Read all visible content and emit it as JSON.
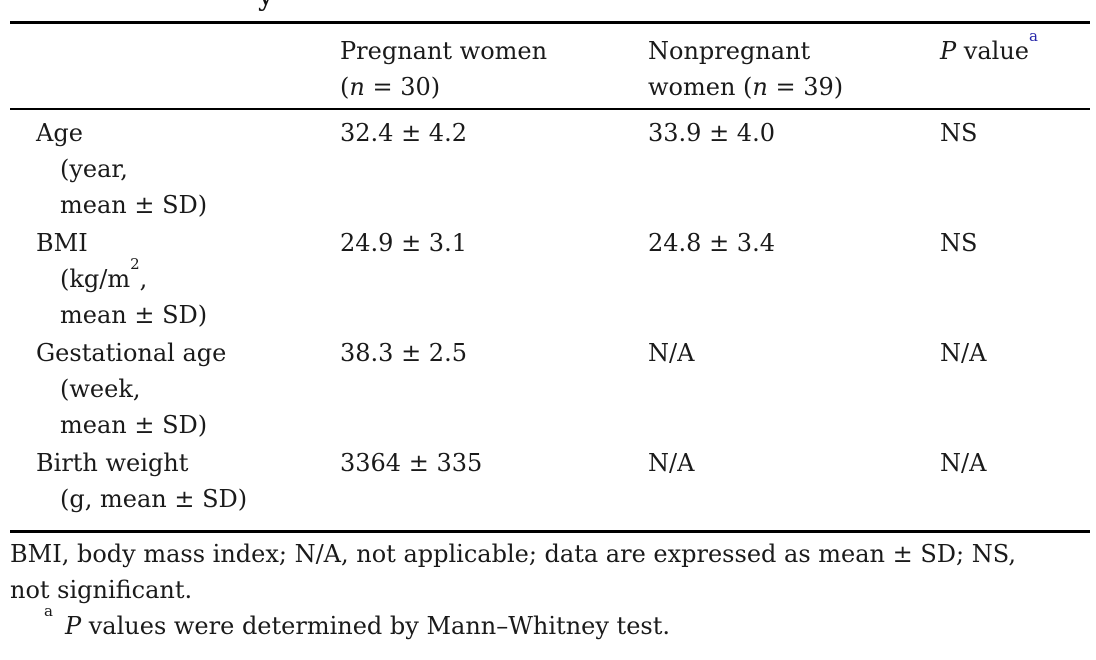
{
  "page": {
    "background": "#ffffff",
    "text_color": "#1a1a1a",
    "rule_color": "#000000",
    "header_footnote_marker_color": "#2525a8"
  },
  "caption_fragment": "y",
  "table": {
    "header": {
      "col2_line1": "Pregnant women",
      "col2_line2_open": "(",
      "col2_line2_n": "n",
      "col2_line2_rest": " = 30)",
      "col3_line1": "Nonpregnant",
      "col3_line2_pre": "women (",
      "col3_line2_n": "n",
      "col3_line2_rest": " = 39)",
      "col4_p": "P",
      "col4_rest": " value",
      "col4_sup": "a"
    },
    "rows": [
      {
        "label": "Age",
        "sub1": "(year,",
        "sub2": "mean ± SD)",
        "pregnant": "32.4 ± 4.2",
        "nonpregnant": "33.9 ± 4.0",
        "p_value": "NS"
      },
      {
        "label": "BMI",
        "sub1_pre": "(kg/m",
        "sub1_sup": "2",
        "sub1_post": ",",
        "sub2": "mean ± SD)",
        "pregnant": "24.9 ± 3.1",
        "nonpregnant": "24.8 ± 3.4",
        "p_value": "NS"
      },
      {
        "label": "Gestational age",
        "sub1": "(week,",
        "sub2": "mean ± SD)",
        "pregnant": "38.3 ± 2.5",
        "nonpregnant": "N/A",
        "p_value": "N/A"
      },
      {
        "label": "Birth weight",
        "sub1": "(g, mean ± SD)",
        "pregnant": "3364 ± 335",
        "nonpregnant": "N/A",
        "p_value": "N/A"
      }
    ]
  },
  "footnotes": {
    "abbrev_line1": "BMI, body mass index; N/A, not applicable; data are expressed as mean ± SD; NS,",
    "abbrev_line2": "not significant.",
    "a_marker": "a",
    "a_p": "P",
    "a_text": " values were determined by Mann–Whitney test."
  }
}
